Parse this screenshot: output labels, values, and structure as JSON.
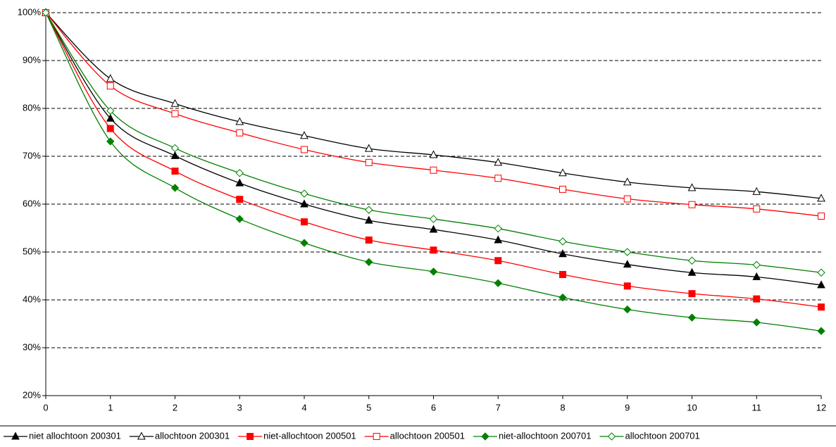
{
  "chart_data": {
    "type": "line",
    "x": [
      0,
      1,
      2,
      3,
      4,
      5,
      6,
      7,
      8,
      9,
      10,
      11,
      12
    ],
    "xlim": [
      0,
      12
    ],
    "xticks": [
      0,
      1,
      2,
      3,
      4,
      5,
      6,
      7,
      8,
      9,
      10,
      11,
      12
    ],
    "ylim": [
      20,
      100
    ],
    "yticks": [
      {
        "value": 20,
        "label": "20%"
      },
      {
        "value": 30,
        "label": "30%"
      },
      {
        "value": 40,
        "label": "40%"
      },
      {
        "value": 50,
        "label": "50%"
      },
      {
        "value": 60,
        "label": "60%"
      },
      {
        "value": 70,
        "label": "70%"
      },
      {
        "value": 80,
        "label": "80%"
      },
      {
        "value": 90,
        "label": "90%"
      },
      {
        "value": 100,
        "label": "100%"
      }
    ],
    "grid": true,
    "legend": "bottom",
    "series": [
      {
        "name": "niet allochtoon 200301",
        "color": "#000000",
        "marker": "triangle",
        "filled": true,
        "values": [
          100,
          77.9,
          70.1,
          64.4,
          60.0,
          56.6,
          54.7,
          52.5,
          49.6,
          47.4,
          45.7,
          44.8,
          43.1
        ]
      },
      {
        "name": "allochtoon 200301",
        "color": "#000000",
        "marker": "triangle",
        "filled": false,
        "values": [
          100,
          86.2,
          81.0,
          77.2,
          74.3,
          71.6,
          70.3,
          68.7,
          66.5,
          64.6,
          63.4,
          62.6,
          61.2
        ]
      },
      {
        "name": "niet-allochtoon 200501",
        "color": "#ff0000",
        "marker": "square",
        "filled": true,
        "values": [
          100,
          75.8,
          66.9,
          61.0,
          56.3,
          52.5,
          50.4,
          48.2,
          45.3,
          42.9,
          41.3,
          40.2,
          38.5
        ]
      },
      {
        "name": "allochtoon 200501",
        "color": "#ff0000",
        "marker": "square",
        "filled": false,
        "values": [
          100,
          84.7,
          78.9,
          74.9,
          71.4,
          68.7,
          67.1,
          65.4,
          63.1,
          61.1,
          59.9,
          59.0,
          57.5
        ]
      },
      {
        "name": "niet-allochtoon 200701",
        "color": "#008000",
        "marker": "diamond",
        "filled": true,
        "values": [
          100,
          73.1,
          63.4,
          56.9,
          51.9,
          47.9,
          45.9,
          43.5,
          40.5,
          38.0,
          36.3,
          35.3,
          33.5
        ]
      },
      {
        "name": "allochtoon 200701",
        "color": "#008000",
        "marker": "diamond",
        "filled": false,
        "values": [
          100,
          79.5,
          71.7,
          66.5,
          62.2,
          58.8,
          56.9,
          54.9,
          52.2,
          50.0,
          48.2,
          47.3,
          45.7
        ]
      }
    ]
  }
}
